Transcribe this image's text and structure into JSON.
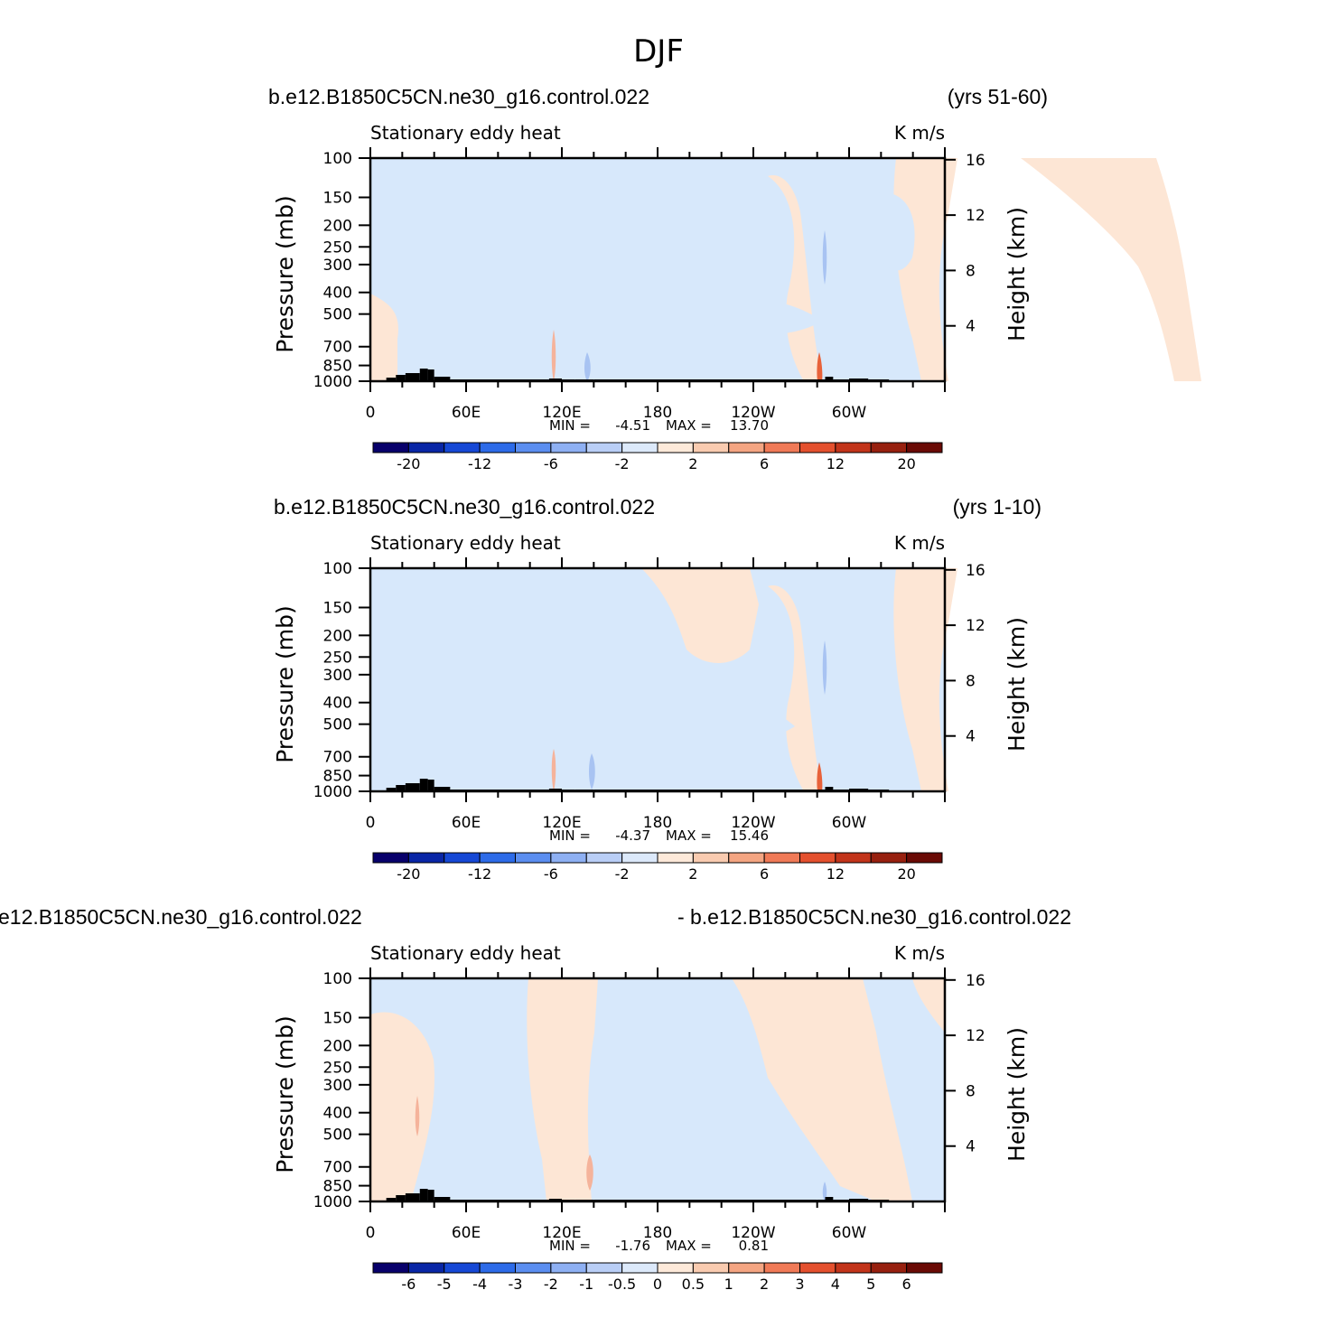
{
  "figure": {
    "title": "DJF"
  },
  "colors": {
    "blue_light": "#d7e8fb",
    "orange_light": "#fde6d5",
    "blue_mid": "#a8c3f2",
    "orange_mid": "#f5b39b",
    "orange_strong": "#e8623a",
    "topography": "#000000"
  },
  "chart_data": [
    {
      "type": "heatmap",
      "title_left": "b.e12.B1850C5CN.ne30_g16.control.022",
      "title_right": "(yrs 51-60)",
      "subtitle_left": "Stationary eddy heat",
      "subtitle_right": "K m/s",
      "ylabel": "Pressure (mb)",
      "ylabel_right": "Height (km)",
      "x_ticks": [
        "0",
        "60E",
        "120E",
        "180",
        "120W",
        "60W"
      ],
      "y_ticks": [
        "100",
        "150",
        "200",
        "250",
        "300",
        "400",
        "500",
        "700",
        "850",
        "1000"
      ],
      "y2_ticks": [
        "16",
        "12",
        "8",
        "4"
      ],
      "xlim": [
        0,
        360
      ],
      "ylim": [
        1000,
        100
      ],
      "stats": {
        "min_label": "MIN =",
        "min": "-4.51",
        "max_label": "MAX =",
        "max": "13.70"
      },
      "colorbar": {
        "colors": [
          "#08006b",
          "#0926a6",
          "#1648d5",
          "#2d6be8",
          "#5b8ef0",
          "#8eb0f3",
          "#b9cef6",
          "#dce9fa",
          "#fde9d9",
          "#f9cbb0",
          "#f4a582",
          "#f07a57",
          "#e4502e",
          "#c2341a",
          "#97200f",
          "#6a0a05"
        ],
        "labels": [
          "-20",
          "-12",
          "-6",
          "-2",
          "2",
          "6",
          "12",
          "20"
        ]
      }
    },
    {
      "type": "heatmap",
      "title_left": "b.e12.B1850C5CN.ne30_g16.control.022",
      "title_right": "(yrs 1-10)",
      "subtitle_left": "Stationary eddy heat",
      "subtitle_right": "K m/s",
      "ylabel": "Pressure (mb)",
      "ylabel_right": "Height (km)",
      "x_ticks": [
        "0",
        "60E",
        "120E",
        "180",
        "120W",
        "60W"
      ],
      "y_ticks": [
        "100",
        "150",
        "200",
        "250",
        "300",
        "400",
        "500",
        "700",
        "850",
        "1000"
      ],
      "y2_ticks": [
        "16",
        "12",
        "8",
        "4"
      ],
      "xlim": [
        0,
        360
      ],
      "ylim": [
        1000,
        100
      ],
      "stats": {
        "min_label": "MIN =",
        "min": "-4.37",
        "max_label": "MAX =",
        "max": "15.46"
      },
      "colorbar": {
        "colors": [
          "#08006b",
          "#0926a6",
          "#1648d5",
          "#2d6be8",
          "#5b8ef0",
          "#8eb0f3",
          "#b9cef6",
          "#dce9fa",
          "#fde9d9",
          "#f9cbb0",
          "#f4a582",
          "#f07a57",
          "#e4502e",
          "#c2341a",
          "#97200f",
          "#6a0a05"
        ],
        "labels": [
          "-20",
          "-12",
          "-6",
          "-2",
          "2",
          "6",
          "12",
          "20"
        ]
      }
    },
    {
      "type": "heatmap",
      "title_left": "e12.B1850C5CN.ne30_g16.control.022",
      "title_right": "- b.e12.B1850C5CN.ne30_g16.control.022",
      "subtitle_left": "Stationary eddy heat",
      "subtitle_right": "K m/s",
      "ylabel": "Pressure (mb)",
      "ylabel_right": "Height (km)",
      "x_ticks": [
        "0",
        "60E",
        "120E",
        "180",
        "120W",
        "60W"
      ],
      "y_ticks": [
        "100",
        "150",
        "200",
        "250",
        "300",
        "400",
        "500",
        "700",
        "850",
        "1000"
      ],
      "y2_ticks": [
        "16",
        "12",
        "8",
        "4"
      ],
      "xlim": [
        0,
        360
      ],
      "ylim": [
        1000,
        100
      ],
      "stats": {
        "min_label": "MIN =",
        "min": "-1.76",
        "max_label": "MAX =",
        "max": "0.81"
      },
      "colorbar": {
        "colors": [
          "#08006b",
          "#0926a6",
          "#1648d5",
          "#2d6be8",
          "#5b8ef0",
          "#8eb0f3",
          "#b9cef6",
          "#dce9fa",
          "#fde9d9",
          "#f9cbb0",
          "#f4a582",
          "#f07a57",
          "#e4502e",
          "#c2341a",
          "#97200f",
          "#6a0a05"
        ],
        "labels": [
          "-6",
          "-5",
          "-4",
          "-3",
          "-2",
          "-1",
          "-0.5",
          "0",
          "0.5",
          "1",
          "2",
          "3",
          "4",
          "5",
          "6"
        ]
      }
    }
  ]
}
